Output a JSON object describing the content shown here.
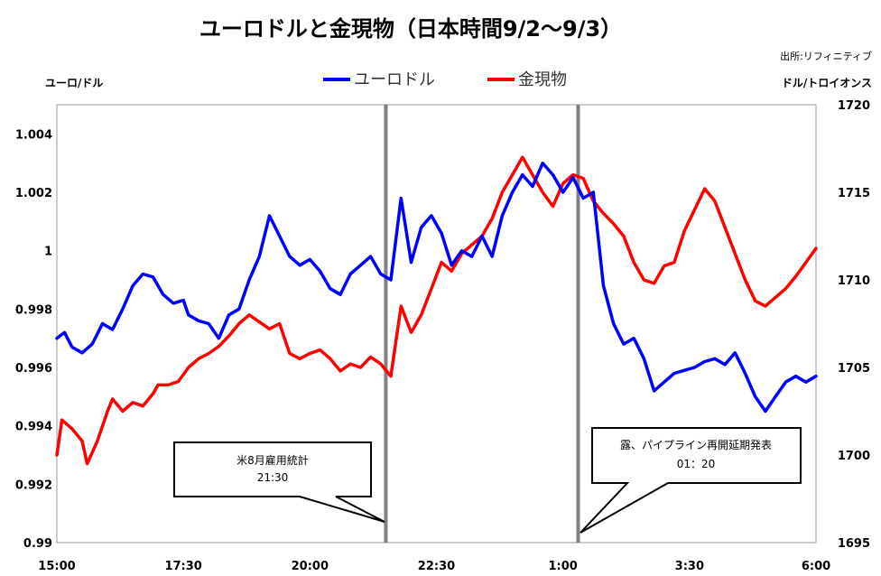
{
  "chart_data": {
    "type": "line",
    "title": "ユーロドルと金現物（日本時間9/2～9/3）",
    "source": "出所:リフィニティブ",
    "left_axis_label": "ユーロ/ドル",
    "right_axis_label": "ドル/トロイオンス",
    "x_tick_labels": [
      "15:00",
      "17:30",
      "20:00",
      "22:30",
      "1:00",
      "3:30",
      "6:00"
    ],
    "x_range_hours": [
      0,
      15
    ],
    "left_ylim": [
      0.99,
      1.005
    ],
    "left_ticks": [
      "0.99",
      "0.992",
      "0.994",
      "0.996",
      "0.998",
      "1",
      "1.002",
      "1.004"
    ],
    "right_ylim": [
      1695,
      1720
    ],
    "right_ticks": [
      "1695",
      "1700",
      "1705",
      "1710",
      "1715",
      "1720"
    ],
    "legend_position": "top-center",
    "series": [
      {
        "name": "ユーロドル",
        "axis": "left",
        "color": "#0000ff",
        "x_hours": [
          0,
          0.15,
          0.3,
          0.5,
          0.7,
          0.9,
          1.1,
          1.3,
          1.5,
          1.7,
          1.9,
          2.1,
          2.3,
          2.5,
          2.6,
          2.8,
          3,
          3.2,
          3.4,
          3.6,
          3.8,
          4.0,
          4.2,
          4.4,
          4.6,
          4.8,
          5.0,
          5.2,
          5.4,
          5.6,
          5.8,
          6.0,
          6.2,
          6.4,
          6.6,
          6.8,
          7.0,
          7.2,
          7.4,
          7.6,
          7.8,
          8.0,
          8.2,
          8.4,
          8.6,
          8.8,
          9.0,
          9.2,
          9.4,
          9.6,
          9.8,
          10.0,
          10.2,
          10.4,
          10.6,
          10.8,
          11.0,
          11.2,
          11.4,
          11.6,
          11.8,
          12.0,
          12.2,
          12.4,
          12.6,
          12.8,
          13.0,
          13.2,
          13.4,
          13.6,
          13.8,
          14.0,
          14.2,
          14.4,
          14.6,
          14.8,
          15.0
        ],
        "values": [
          0.997,
          0.9972,
          0.9967,
          0.9965,
          0.9968,
          0.9975,
          0.9973,
          0.998,
          0.9988,
          0.9992,
          0.9991,
          0.9985,
          0.9982,
          0.9983,
          0.9978,
          0.9976,
          0.9975,
          0.997,
          0.9978,
          0.998,
          0.999,
          0.9998,
          1.0012,
          1.0005,
          0.9998,
          0.9995,
          0.9997,
          0.9993,
          0.9987,
          0.9985,
          0.9992,
          0.9995,
          0.9998,
          0.9992,
          0.999,
          1.0018,
          0.9996,
          1.0008,
          1.0012,
          1.0006,
          0.9995,
          1.0,
          0.9998,
          1.0005,
          0.9998,
          1.0012,
          1.002,
          1.0026,
          1.0022,
          1.003,
          1.0026,
          1.002,
          1.0025,
          1.0018,
          1.002,
          0.9988,
          0.9975,
          0.9968,
          0.997,
          0.9963,
          0.9952,
          0.9955,
          0.9958,
          0.9959,
          0.996,
          0.9962,
          0.9963,
          0.9961,
          0.9965,
          0.9958,
          0.995,
          0.9945,
          0.995,
          0.9955,
          0.9957,
          0.9955,
          0.9957
        ]
      },
      {
        "name": "金現物",
        "axis": "right",
        "color": "#ff0000",
        "x_hours": [
          0,
          0.1,
          0.3,
          0.5,
          0.6,
          0.8,
          1.0,
          1.1,
          1.3,
          1.5,
          1.7,
          1.9,
          2.0,
          2.2,
          2.4,
          2.6,
          2.8,
          3.0,
          3.2,
          3.4,
          3.6,
          3.8,
          4.0,
          4.2,
          4.4,
          4.6,
          4.8,
          5.0,
          5.2,
          5.4,
          5.6,
          5.8,
          6.0,
          6.2,
          6.4,
          6.6,
          6.8,
          7.0,
          7.2,
          7.4,
          7.6,
          7.8,
          8.0,
          8.2,
          8.4,
          8.6,
          8.8,
          9.0,
          9.2,
          9.4,
          9.6,
          9.8,
          10.0,
          10.2,
          10.4,
          10.6,
          10.8,
          11.0,
          11.2,
          11.4,
          11.6,
          11.8,
          12.0,
          12.2,
          12.4,
          12.6,
          12.8,
          13.0,
          13.2,
          13.4,
          13.6,
          13.8,
          14.0,
          14.2,
          14.4,
          14.6,
          14.8,
          15.0
        ],
        "values": [
          1700,
          1702,
          1701.5,
          1700.8,
          1699.5,
          1700.8,
          1702.5,
          1703.2,
          1702.5,
          1703,
          1702.8,
          1703.5,
          1704,
          1704,
          1704.2,
          1705,
          1705.5,
          1705.8,
          1706.2,
          1706.8,
          1707.5,
          1708,
          1707.6,
          1707.2,
          1707.5,
          1705.8,
          1705.5,
          1705.8,
          1706,
          1705.5,
          1704.8,
          1705.2,
          1705,
          1705.6,
          1705.2,
          1704.5,
          1708.5,
          1707,
          1708,
          1709.5,
          1711,
          1710.5,
          1711.5,
          1712,
          1712.5,
          1713.5,
          1715,
          1716,
          1717,
          1716,
          1715,
          1714.2,
          1715.5,
          1716,
          1715.8,
          1714.5,
          1713.8,
          1713.2,
          1712.5,
          1711,
          1710,
          1709.8,
          1710.8,
          1711,
          1712.8,
          1714,
          1715.2,
          1714.5,
          1713,
          1711.5,
          1710,
          1708.8,
          1708.5,
          1709,
          1709.5,
          1710.2,
          1711,
          1711.8
        ]
      }
    ],
    "vertical_lines_hours": [
      6.5,
      10.3
    ],
    "annotations": [
      {
        "line1": "米8月雇用統計",
        "line2": "21:30"
      },
      {
        "line1": "露、パイプライン再開延期発表",
        "line2": "01：20"
      }
    ]
  }
}
